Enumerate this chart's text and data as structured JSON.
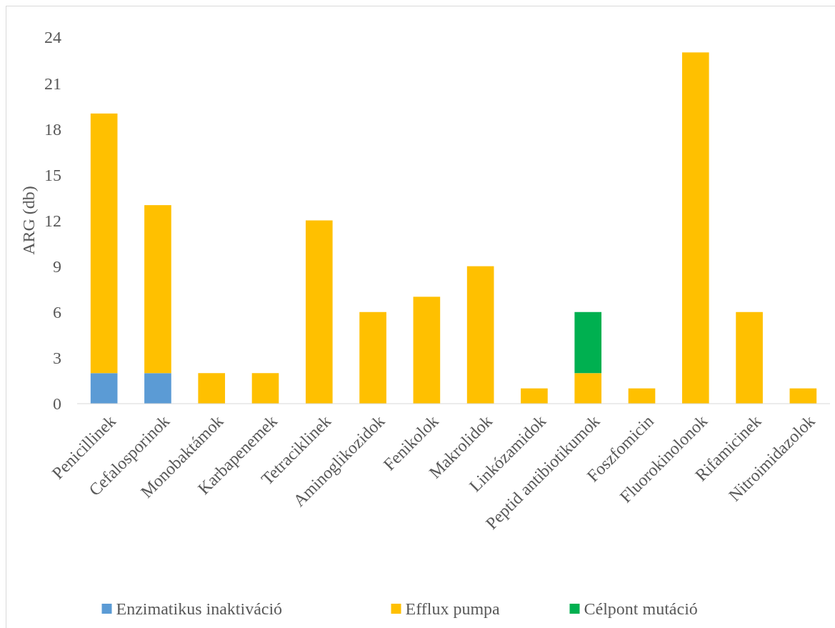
{
  "chart_data": {
    "type": "bar",
    "stacked": true,
    "ylabel": "ARG (db)",
    "categories": [
      "Penicillinek",
      "Cefalosporinok",
      "Monobaktámok",
      "Karbapenemek",
      "Tetraciklinek",
      "Aminoglikozidok",
      "Fenikolok",
      "Makrolidok",
      "Linkózamidok",
      "Peptid antibiotikumok",
      "Foszfomicin",
      "Fluorokinolonok",
      "Rifamicinek",
      "Nitroimidazolok"
    ],
    "series": [
      {
        "name": "Enzimatikus inaktiváció",
        "color": "#5b9bd5",
        "values": [
          2,
          2,
          null,
          null,
          null,
          null,
          null,
          null,
          null,
          null,
          null,
          null,
          null,
          null
        ]
      },
      {
        "name": "Efflux pumpa",
        "color": "#ffc000",
        "values": [
          17,
          11,
          2,
          2,
          12,
          6,
          7,
          9,
          1,
          2,
          1,
          23,
          6,
          1
        ]
      },
      {
        "name": "Célpont mutáció",
        "color": "#00b050",
        "values": [
          null,
          null,
          null,
          null,
          null,
          null,
          null,
          null,
          null,
          4,
          null,
          null,
          null,
          null
        ]
      }
    ],
    "ylim": [
      0,
      24
    ],
    "yticks": [
      0,
      3,
      6,
      9,
      12,
      15,
      18,
      21,
      24
    ],
    "grid": false,
    "legend": "bottom"
  }
}
